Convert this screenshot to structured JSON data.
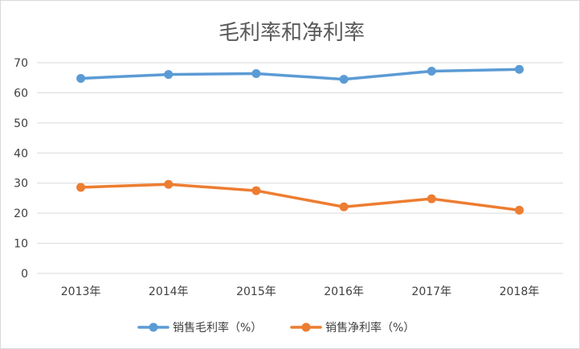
{
  "chart_data": {
    "type": "line",
    "title": "毛利率和净利率",
    "categories": [
      "2013年",
      "2014年",
      "2015年",
      "2016年",
      "2017年",
      "2018年"
    ],
    "ylim": [
      0,
      70
    ],
    "yticks": [
      0,
      10,
      20,
      30,
      40,
      50,
      60,
      70
    ],
    "grid": true,
    "legend_position": "bottom",
    "series": [
      {
        "name": "销售毛利率（%）",
        "color": "#5B9BD5",
        "values": [
          64.8,
          66.1,
          66.4,
          64.5,
          67.2,
          67.8
        ]
      },
      {
        "name": "销售净利率（%）",
        "color": "#ED7D31",
        "values": [
          28.6,
          29.6,
          27.5,
          22.1,
          24.8,
          21.0
        ]
      }
    ]
  }
}
